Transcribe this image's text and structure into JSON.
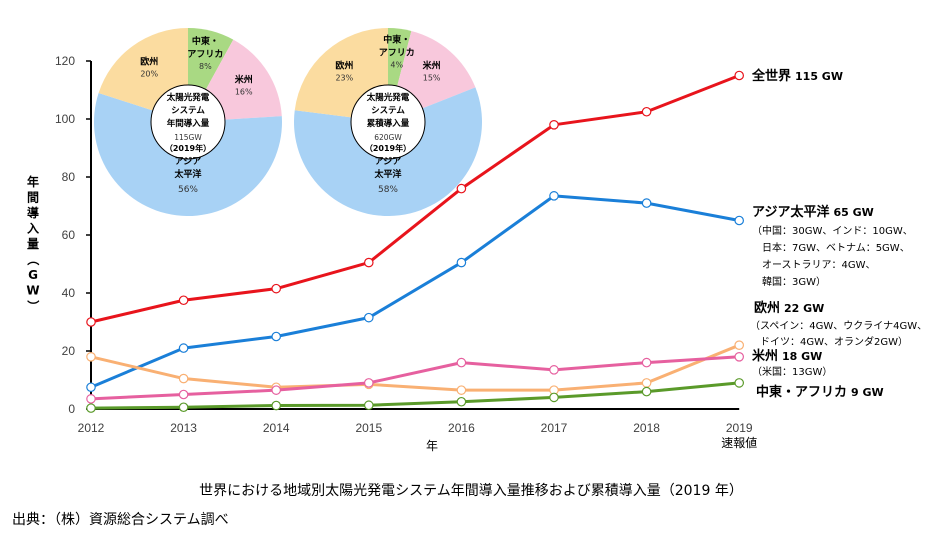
{
  "chart_data": {
    "type": "line",
    "title": "世界における地域別太陽光発電システム年間導入量推移および累積導入量（2019 年）",
    "source": "出典：（株）資源総合システム調べ",
    "xlabel": "年",
    "ylabel": "年間導入量（GW）",
    "ylim": [
      0,
      120
    ],
    "yticks": [
      0,
      20,
      40,
      60,
      80,
      100,
      120
    ],
    "categories": [
      "2012",
      "2013",
      "2014",
      "2015",
      "2016",
      "2017",
      "2018",
      "2019"
    ],
    "last_category_note": "速報値",
    "grid": false,
    "series": [
      {
        "name": "全世界",
        "color": "#e8141c",
        "values": [
          30,
          37.5,
          41.5,
          50.5,
          76,
          98,
          102.5,
          115
        ],
        "label_main": "全世界",
        "label_value": "115 GW",
        "label_notes": []
      },
      {
        "name": "アジア太平洋",
        "color": "#1a7fd8",
        "values": [
          7.5,
          21,
          25,
          31.5,
          50.5,
          73.5,
          71,
          65
        ],
        "label_main": "アジア太平洋",
        "label_value": "65 GW",
        "label_notes": [
          "（中国：30GW、インド：10GW、",
          "日本：7GW、ベトナム：5GW、",
          "オーストラリア：4GW、",
          "韓国：3GW）"
        ]
      },
      {
        "name": "欧州",
        "color": "#f9b073",
        "values": [
          18,
          10.5,
          7.5,
          8.5,
          6.5,
          6.5,
          9,
          22
        ],
        "label_main": "欧州",
        "label_value": "22 GW",
        "label_notes": [
          "（スペイン：4GW、ウクライナ4GW、",
          "ドイツ：4GW、オランダ2GW）"
        ]
      },
      {
        "name": "米州",
        "color": "#e6609f",
        "values": [
          3.5,
          5,
          6.5,
          9,
          16,
          13.5,
          16,
          18
        ],
        "label_main": "米州",
        "label_value": "18 GW",
        "label_notes": [
          "（米国：13GW）"
        ]
      },
      {
        "name": "中東・アフリカ",
        "color": "#5a9a2a",
        "values": [
          0.3,
          0.6,
          1.2,
          1.3,
          2.5,
          4,
          6,
          9
        ],
        "label_main": "中東・アフリカ",
        "label_value": "9 GW",
        "label_notes": []
      }
    ],
    "pies": [
      {
        "center_title": [
          "太陽光発電",
          "システム",
          "年間導入量"
        ],
        "center_value": "115GW",
        "center_year": "（2019年）",
        "slices": [
          {
            "name": "中東・アフリカ",
            "label_lines": [
              "中東・",
              "アフリカ"
            ],
            "percent": 8,
            "color": "#a9d983"
          },
          {
            "name": "米州",
            "label_lines": [
              "米州"
            ],
            "percent": 16,
            "color": "#f8c8dc"
          },
          {
            "name": "アジア太平洋",
            "label_lines": [
              "アジア",
              "太平洋"
            ],
            "percent": 56,
            "color": "#a8d2f5"
          },
          {
            "name": "欧州",
            "label_lines": [
              "欧州"
            ],
            "percent": 20,
            "color": "#fbdca0"
          }
        ]
      },
      {
        "center_title": [
          "太陽光発電",
          "システム",
          "累積導入量"
        ],
        "center_value": "620GW",
        "center_year": "（2019年）",
        "slices": [
          {
            "name": "中東・アフリカ",
            "label_lines": [
              "中東・",
              "アフリカ"
            ],
            "percent": 4,
            "color": "#a9d983"
          },
          {
            "name": "米州",
            "label_lines": [
              "米州"
            ],
            "percent": 15,
            "color": "#f8c8dc"
          },
          {
            "name": "アジア太平洋",
            "label_lines": [
              "アジア",
              "太平洋"
            ],
            "percent": 58,
            "color": "#a8d2f5"
          },
          {
            "name": "欧州",
            "label_lines": [
              "欧州"
            ],
            "percent": 23,
            "color": "#fbdca0"
          }
        ]
      }
    ]
  }
}
